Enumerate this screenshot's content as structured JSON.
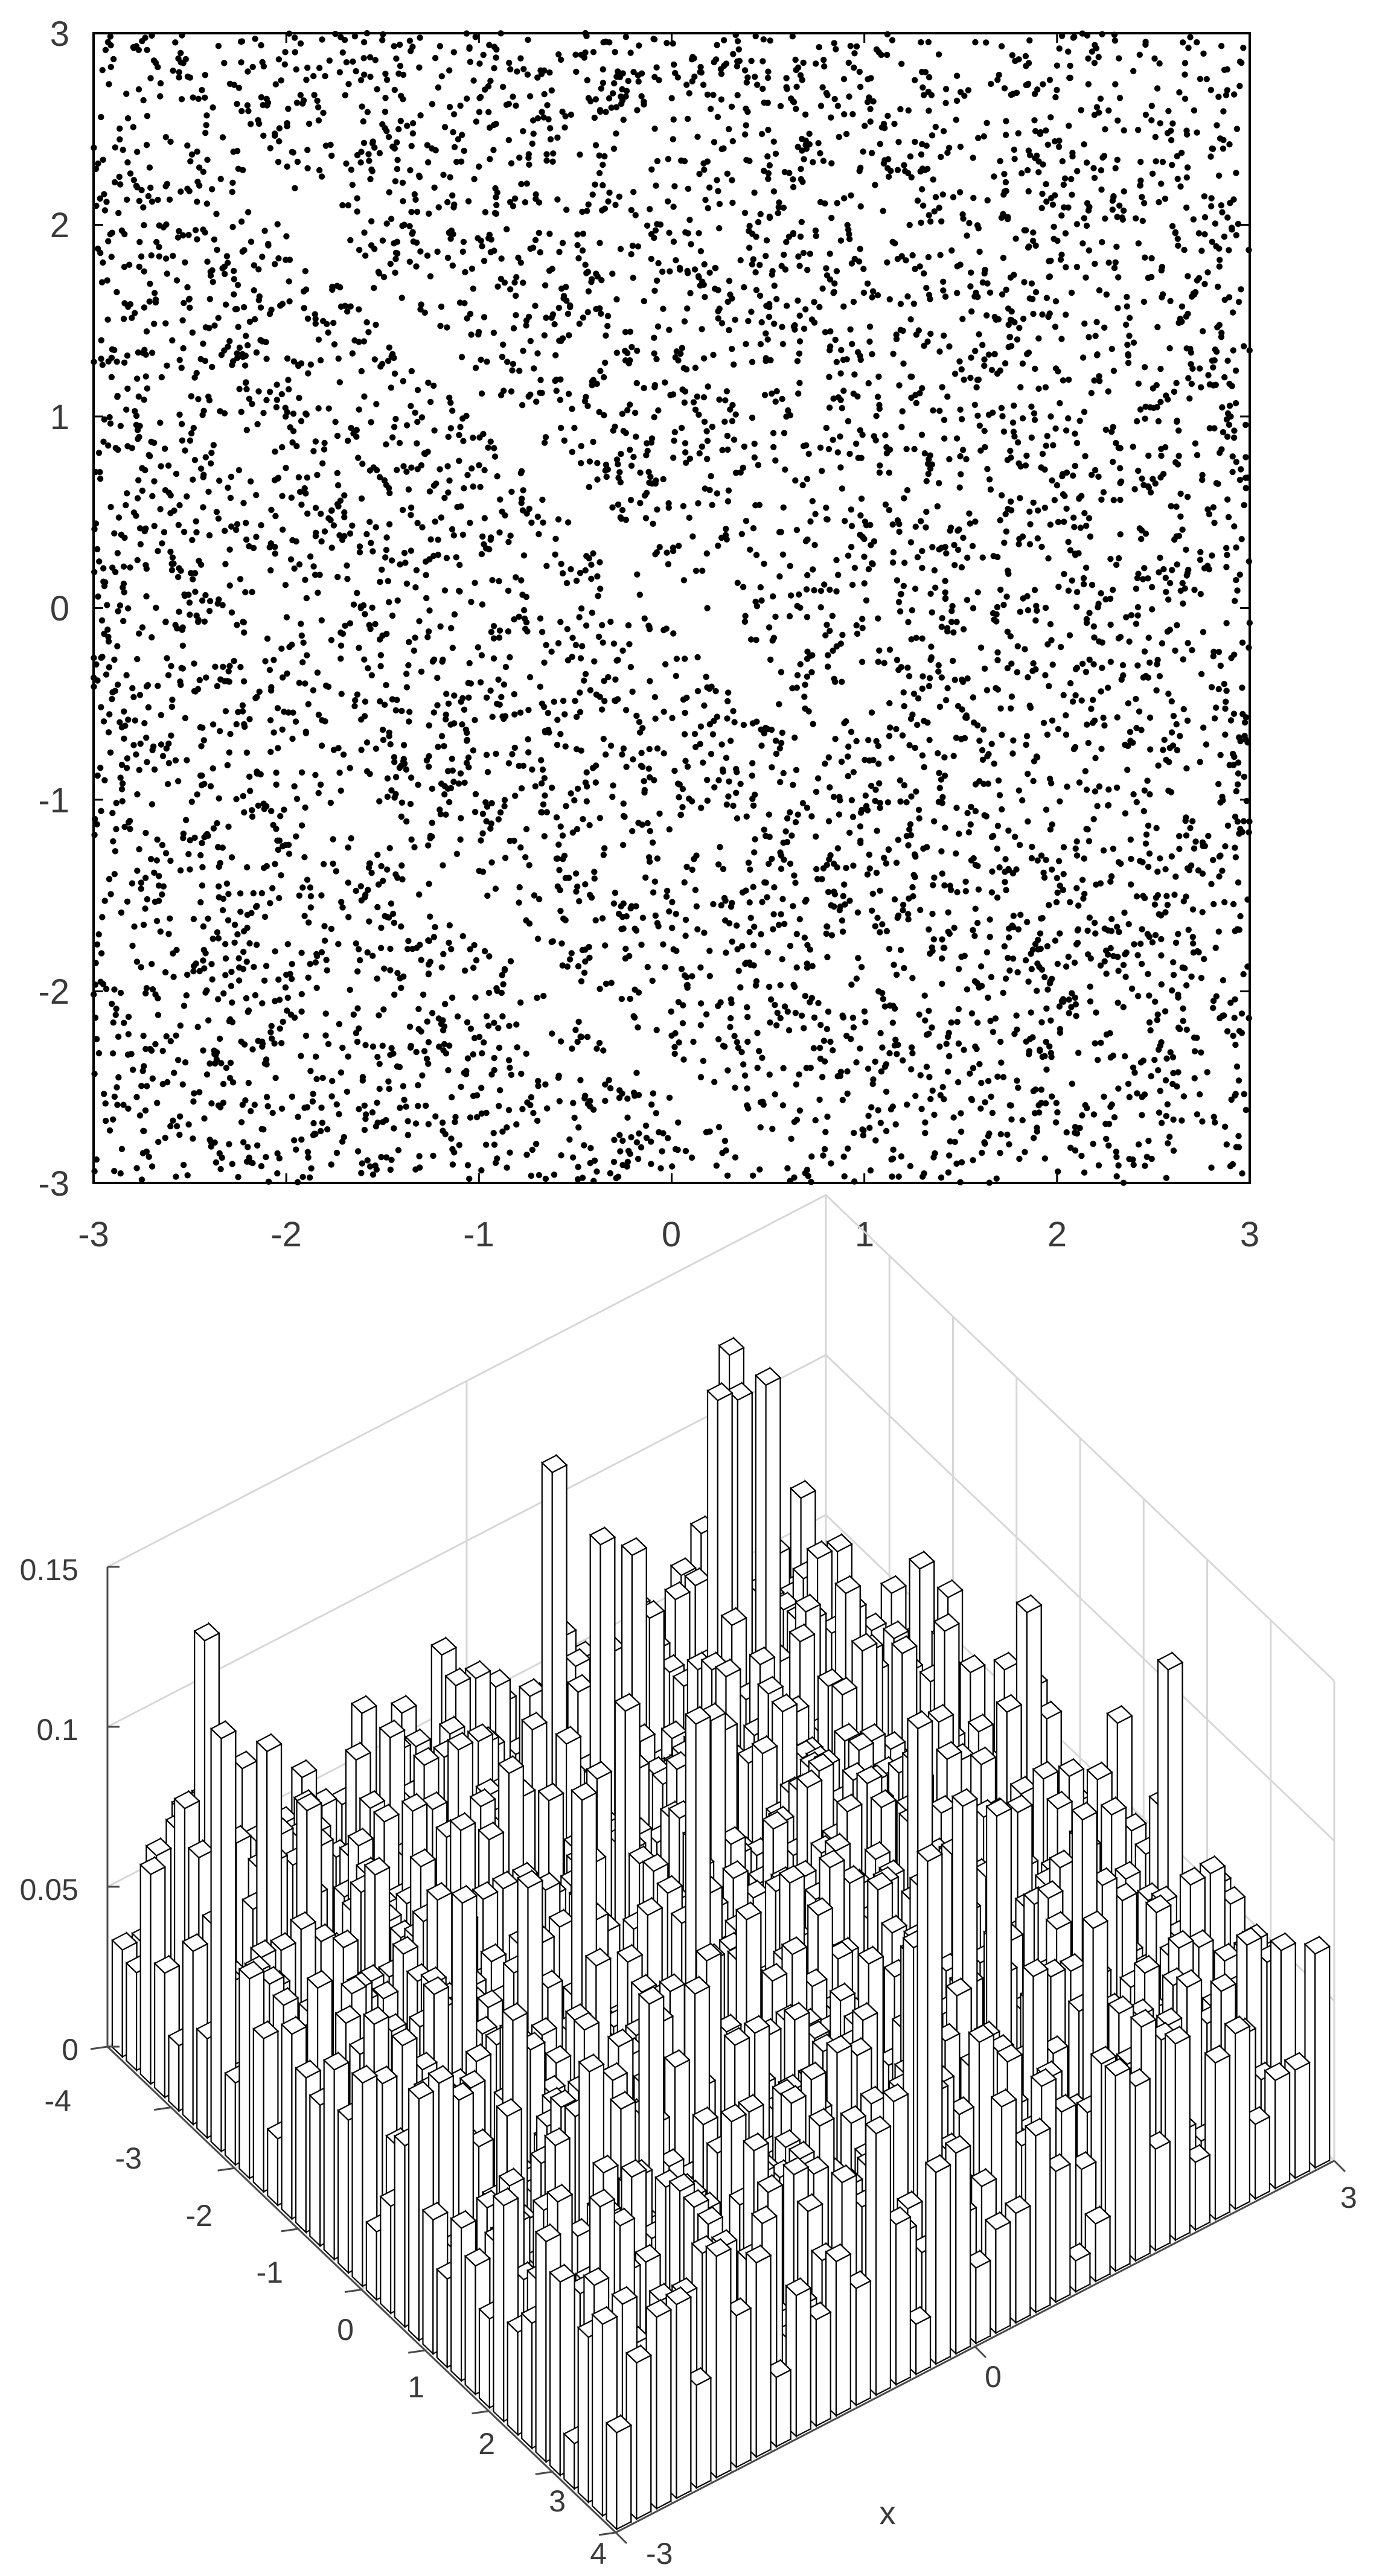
{
  "chart_data": [
    {
      "type": "scatter",
      "title": "",
      "xlabel": "",
      "ylabel": "",
      "xlim": [
        -3,
        3
      ],
      "ylim": [
        -3,
        3
      ],
      "xticks": [
        "-3",
        "-2",
        "-1",
        "0",
        "1",
        "2",
        "3"
      ],
      "yticks": [
        "3",
        "2",
        "1",
        "0",
        "-1",
        "-2",
        "-3"
      ],
      "grid": false,
      "marker_color": "#000000",
      "n_points_approx": 6000,
      "distribution": "roughly uniform random points over the square, with sparse diagonal bands (upper-left to lower-right) running through about (-2,2.2)->(0.3,-0.3) and (-1.7,-1.0)->(0.5,-2.8)"
    },
    {
      "type": "bar3",
      "title": "",
      "xlabel": "x",
      "ylabel": "",
      "zlabel": "",
      "xlim": [
        -3,
        3
      ],
      "ylim": [
        -4,
        4
      ],
      "zlim": [
        0,
        0.15
      ],
      "xticks": [
        "-3",
        "0",
        "3"
      ],
      "yticks": [
        "-4",
        "-3",
        "-2",
        "-1",
        "0",
        "1",
        "2",
        "3",
        "4"
      ],
      "zticks": [
        "0",
        "0.05",
        "0.1",
        "0.15"
      ],
      "grid": true,
      "bar_face_color": "#ffffff",
      "bar_edge_color": "#000000",
      "grid_size": [
        36,
        36
      ],
      "height_range": [
        0,
        0.15
      ],
      "typical_height_range": [
        0.02,
        0.07
      ]
    }
  ]
}
